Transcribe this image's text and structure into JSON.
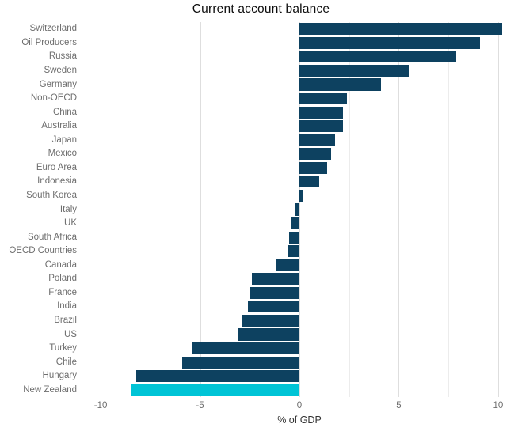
{
  "title": "Current account balance",
  "colors": {
    "bar_default": "#0d4160",
    "bar_highlight": "#00c4d6",
    "gridline_major": "#dedede",
    "gridline_minor": "#ececec",
    "axis_text": "#6e6e6e",
    "title_text": "#0d0d0d",
    "axis_title_text": "#333333",
    "background": "#ffffff"
  },
  "chart_data": {
    "type": "bar",
    "orientation": "horizontal",
    "title": "Current account balance",
    "xlabel": "% of GDP",
    "ylabel": "",
    "xlim": [
      -11,
      11
    ],
    "x_ticks": [
      -10,
      -5,
      0,
      5,
      10
    ],
    "x_tick_labels": [
      "-10",
      "-5",
      "0",
      "5",
      "10"
    ],
    "x_minor_gridlines": [
      -7.5,
      -2.5,
      2.5,
      7.5
    ],
    "grid": "vertical-only",
    "legend": "none",
    "highlight_category": "New Zealand",
    "categories": [
      "Switzerland",
      "Oil Producers",
      "Russia",
      "Sweden",
      "Germany",
      "Non-OECD",
      "China",
      "Australia",
      "Japan",
      "Mexico",
      "Euro Area",
      "Indonesia",
      "South Korea",
      "Italy",
      "UK",
      "South Africa",
      "OECD Countries",
      "Canada",
      "Poland",
      "France",
      "India",
      "Brazil",
      "US",
      "Turkey",
      "Chile",
      "Hungary",
      "New Zealand"
    ],
    "values": [
      10.2,
      9.1,
      7.9,
      5.5,
      4.1,
      2.4,
      2.2,
      2.2,
      1.8,
      1.6,
      1.4,
      1.0,
      0.2,
      -0.2,
      -0.4,
      -0.5,
      -0.6,
      -1.2,
      -2.4,
      -2.5,
      -2.6,
      -2.9,
      -3.1,
      -5.4,
      -5.9,
      -8.2,
      -8.5
    ]
  }
}
